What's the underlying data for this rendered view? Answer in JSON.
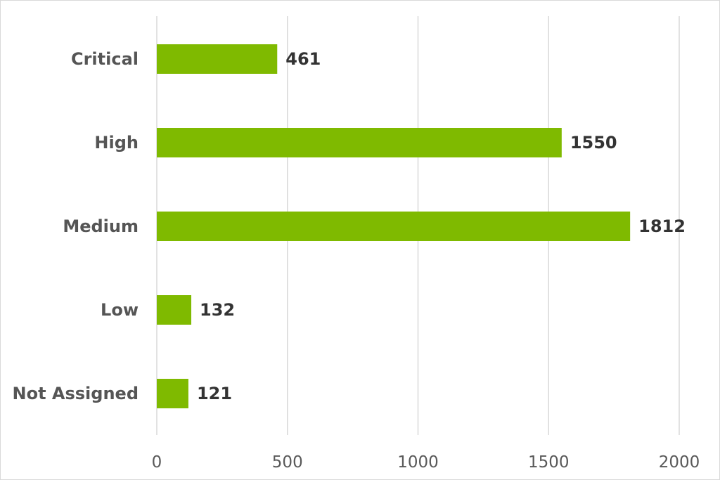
{
  "chart_data": {
    "type": "bar",
    "orientation": "horizontal",
    "categories": [
      "Critical",
      "High",
      "Medium",
      "Low",
      "Not Assigned"
    ],
    "values": [
      461,
      1550,
      1812,
      132,
      121
    ],
    "data_labels": [
      "461",
      "1550",
      "1812",
      "132",
      "121"
    ],
    "xlim": [
      0,
      2000
    ],
    "x_ticks": [
      0,
      500,
      1000,
      1500,
      2000
    ],
    "x_tick_labels": [
      "0",
      "500",
      "1000",
      "1500",
      "2000"
    ],
    "grid": true,
    "legend": "none",
    "bar_color": "#7fba00",
    "title": "",
    "xlabel": "",
    "ylabel": ""
  }
}
